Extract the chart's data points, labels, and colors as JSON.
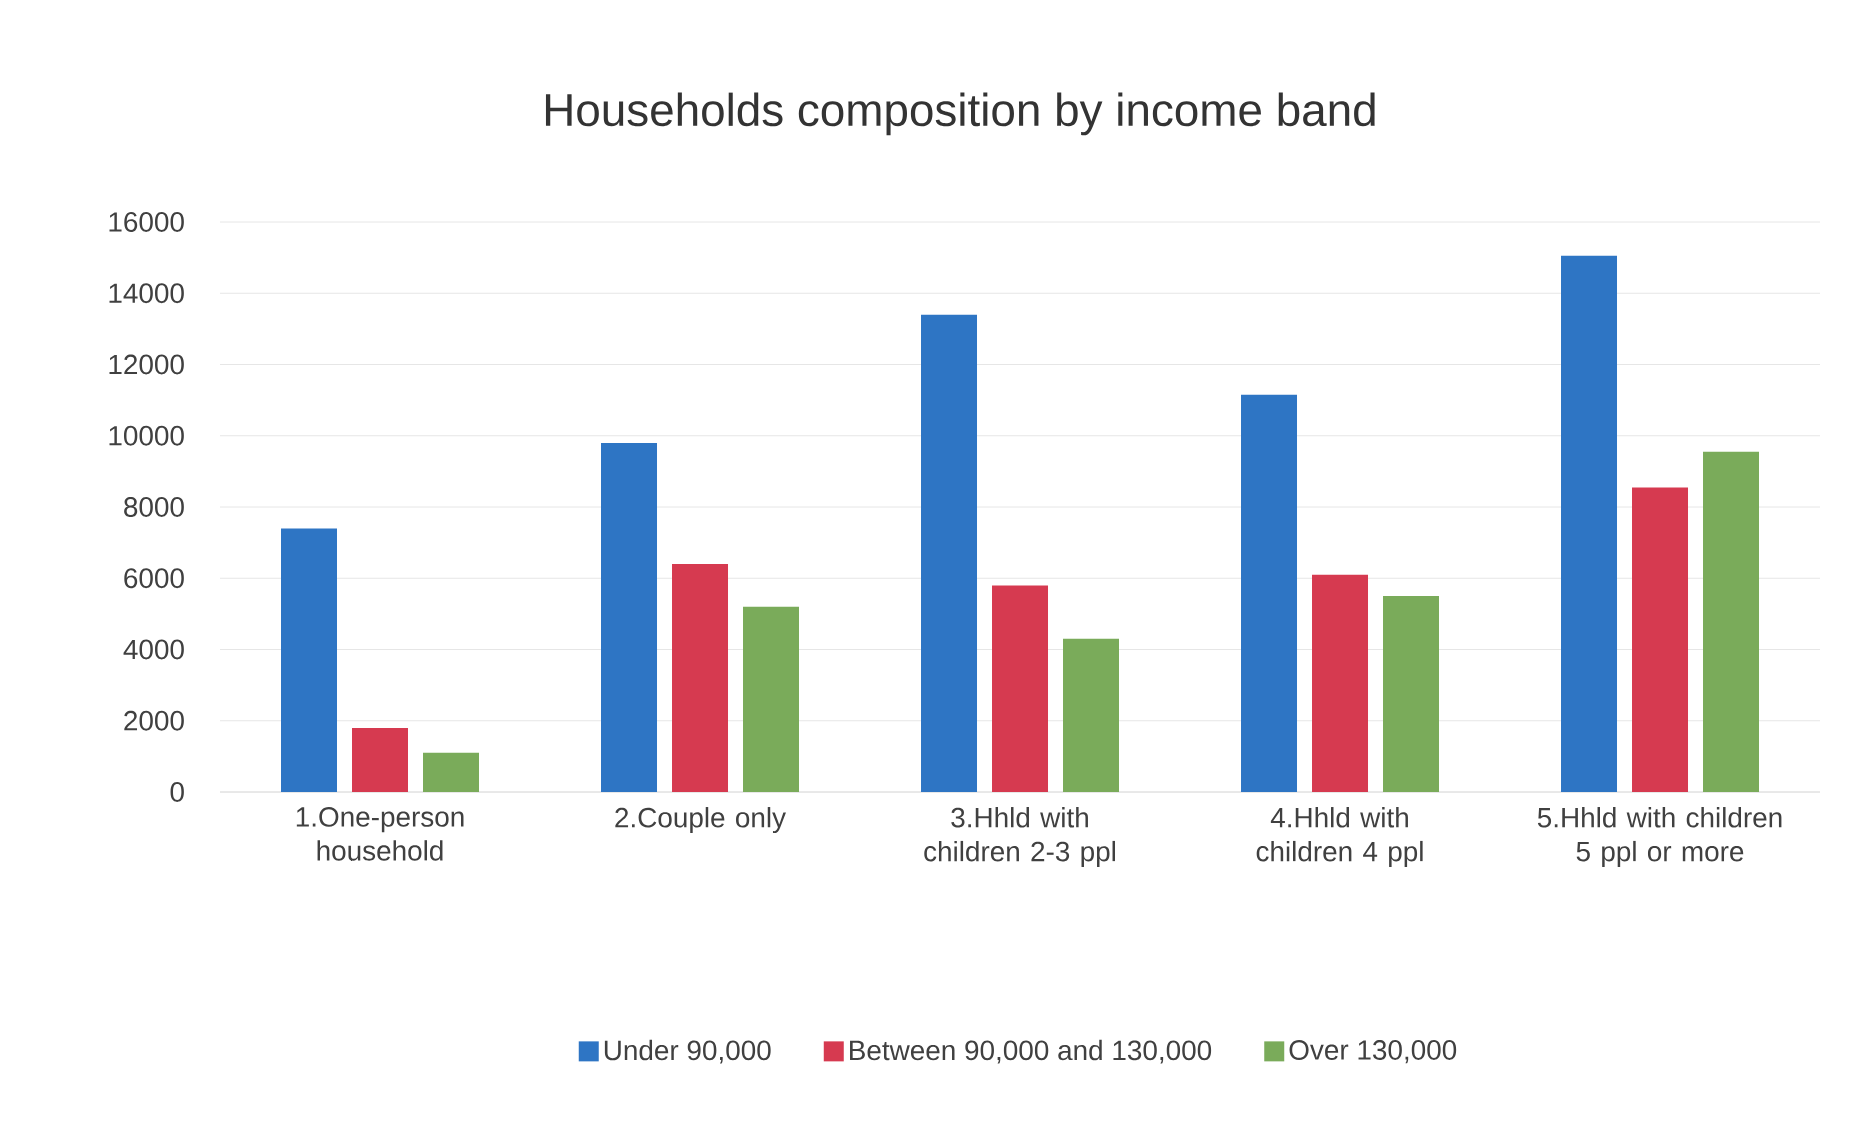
{
  "chart_data": {
    "type": "bar",
    "title": "Households composition by income band",
    "categories": [
      "1.One-person household",
      "2.Couple only",
      "3.Hhld with children 2-3 ppl",
      "4.Hhld with children 4 ppl",
      "5.Hhld with children 5 ppl or more"
    ],
    "series": [
      {
        "name": "Under 90,000",
        "color": "#2e75c4",
        "values": [
          7400,
          9800,
          13400,
          11150,
          15050
        ]
      },
      {
        "name": "Between 90,000 and 130,000",
        "color": "#d63a50",
        "values": [
          1800,
          6400,
          5800,
          6100,
          8550
        ]
      },
      {
        "name": "Over 130,000",
        "color": "#7aab5a",
        "values": [
          1100,
          5200,
          4300,
          5500,
          9550
        ]
      }
    ],
    "ylim": [
      0,
      16000
    ],
    "yticks": [
      0,
      2000,
      4000,
      6000,
      8000,
      10000,
      12000,
      14000,
      16000
    ],
    "grid": "y",
    "legend": "bottom"
  }
}
